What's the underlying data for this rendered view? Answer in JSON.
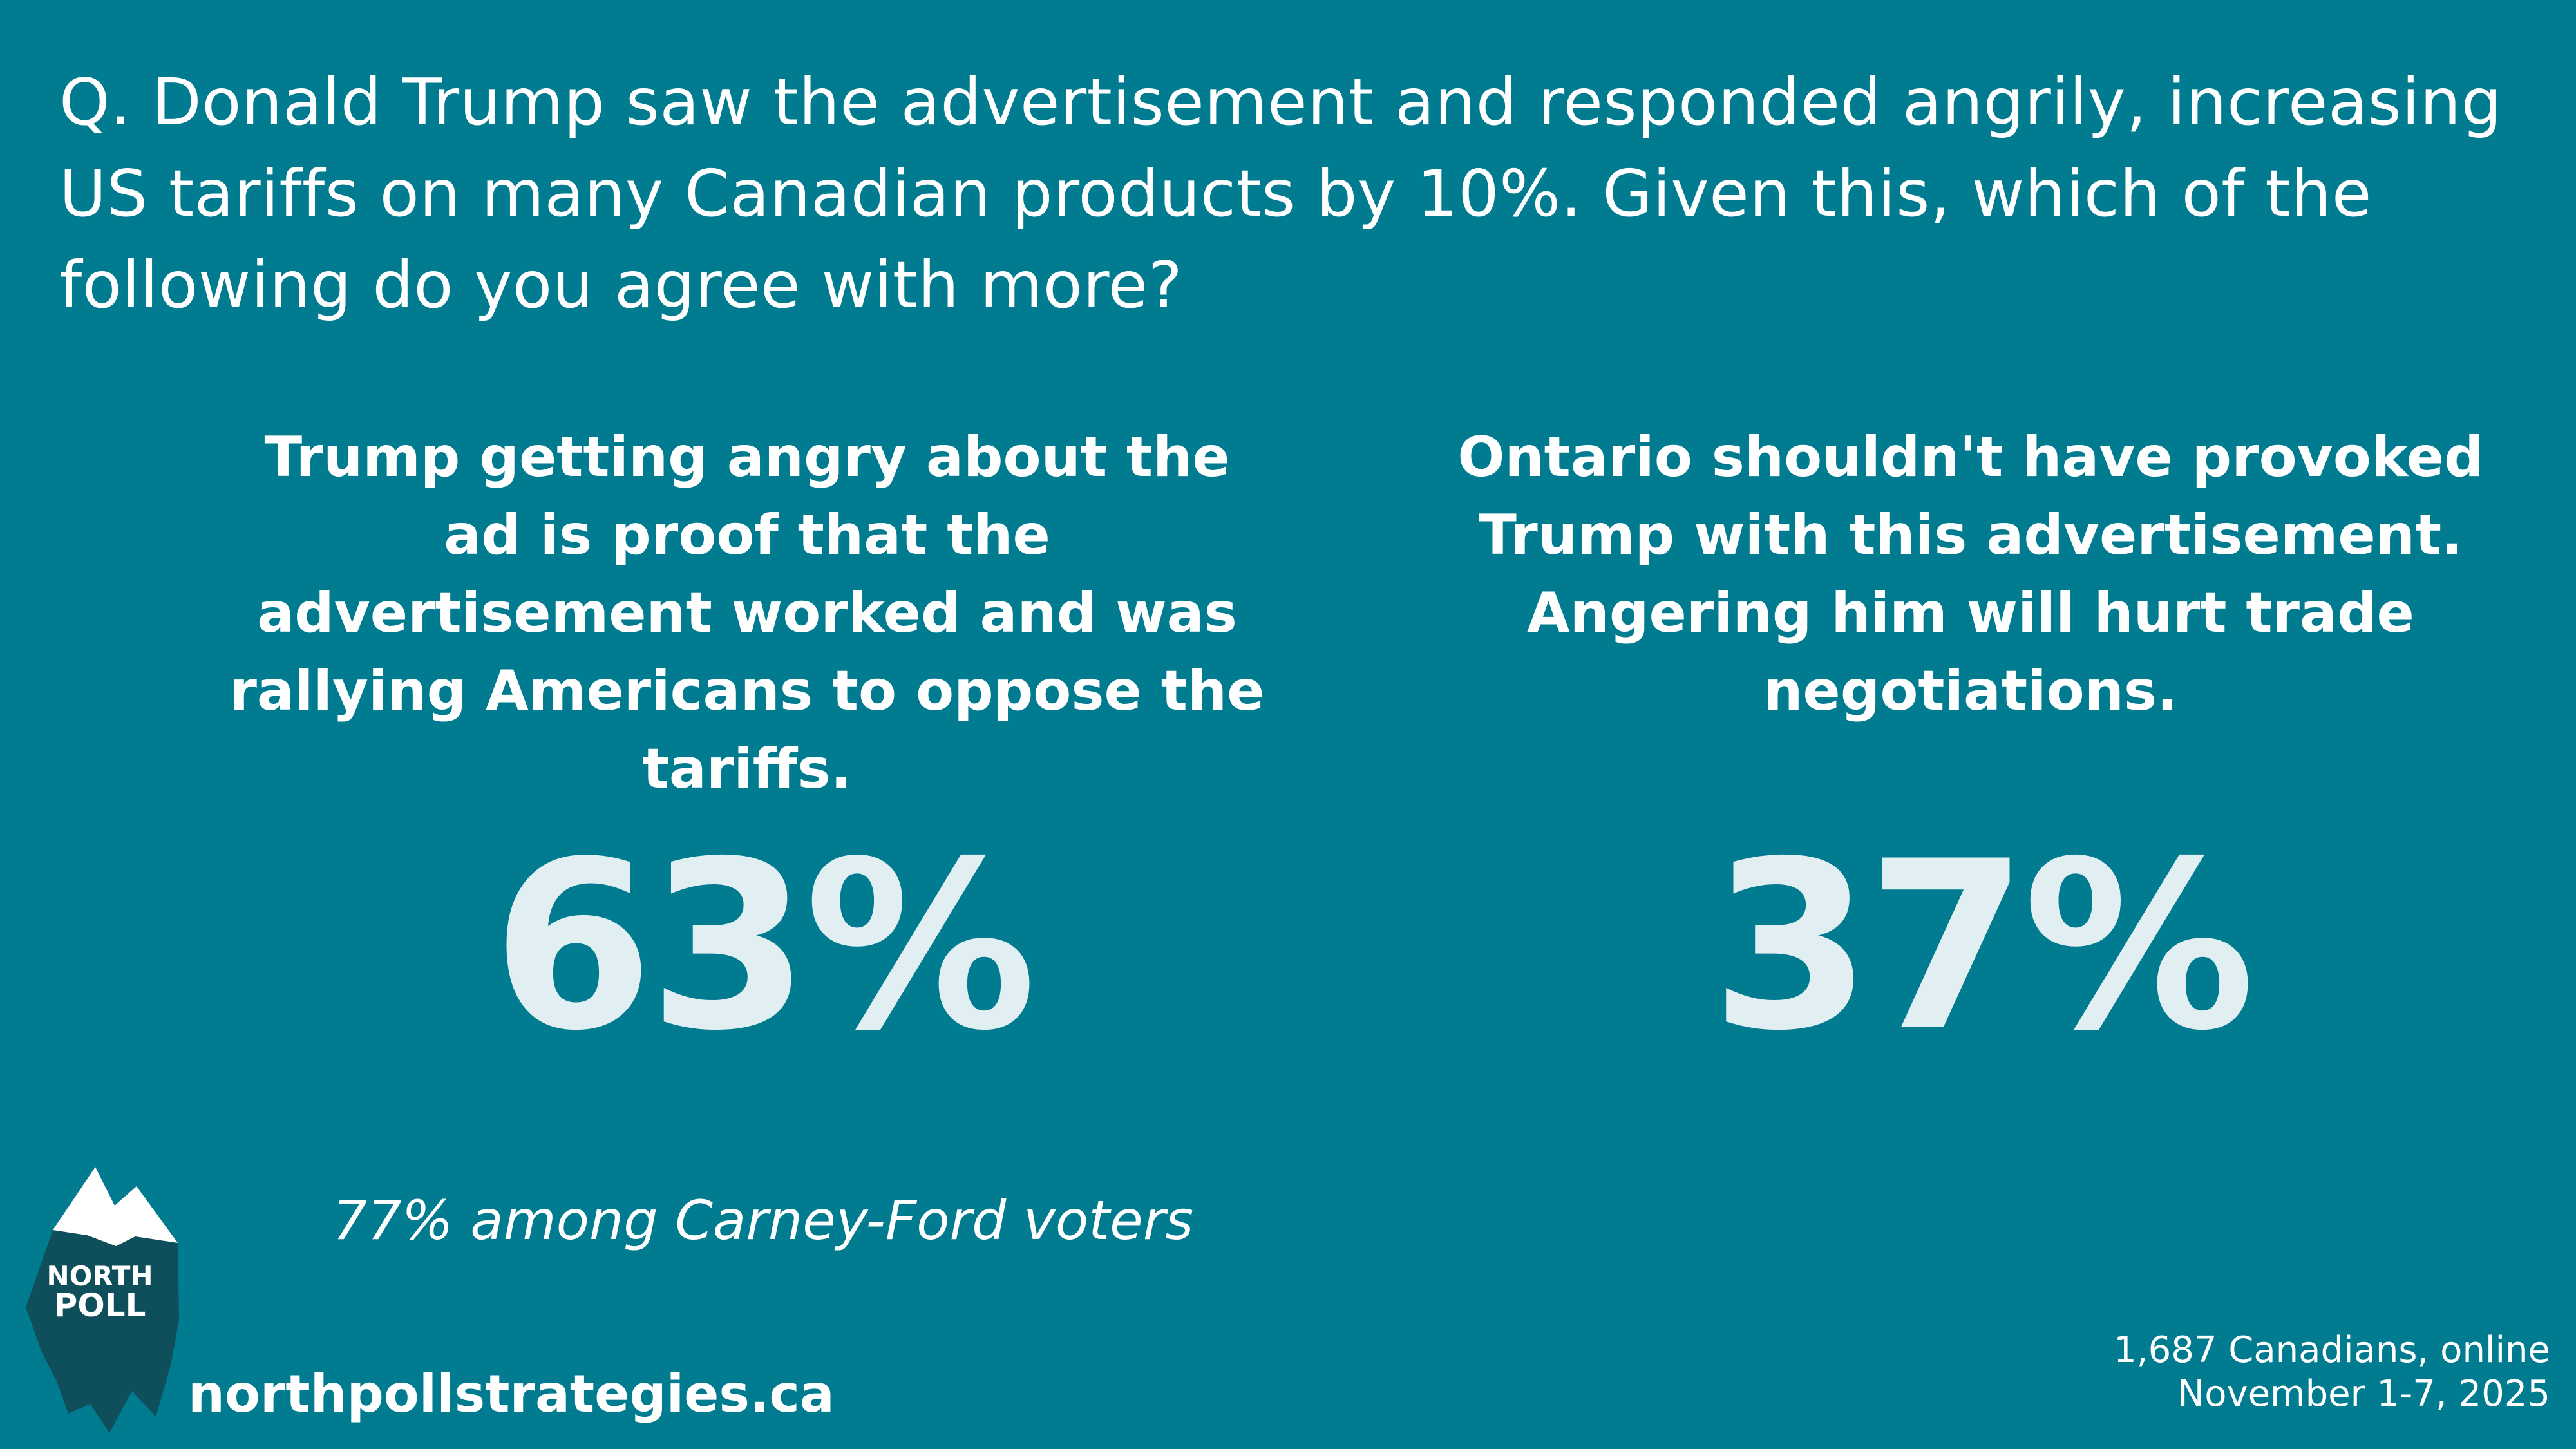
{
  "question": "Q. Donald Trump saw the advertisement and responded angrily, increasing US tariffs on many Canadian products by 10%. Given this, which of the following do you agree with more?",
  "options": [
    {
      "text": "Trump getting angry about the ad is proof that the advertisement worked and was rallying Americans to oppose the tariffs.",
      "percent": "63%",
      "note": "77% among Carney-Ford voters"
    },
    {
      "text": "Ontario shouldn't have provoked Trump with this advertisement. Angering him will hurt trade negotiations.",
      "percent": "37%"
    }
  ],
  "branding": {
    "logo_text_line1": "NORTH",
    "logo_text_line2": "POLL",
    "url": "northpollstrategies.ca"
  },
  "methodology": {
    "sample": "1,687 Canadians, online",
    "dates": "November 1-7, 2025"
  },
  "colors": {
    "background": "#007b8f",
    "text": "#ffffff",
    "percent": "#e1eef2",
    "logo_dark": "#0f4f5b",
    "logo_light": "#ffffff"
  }
}
